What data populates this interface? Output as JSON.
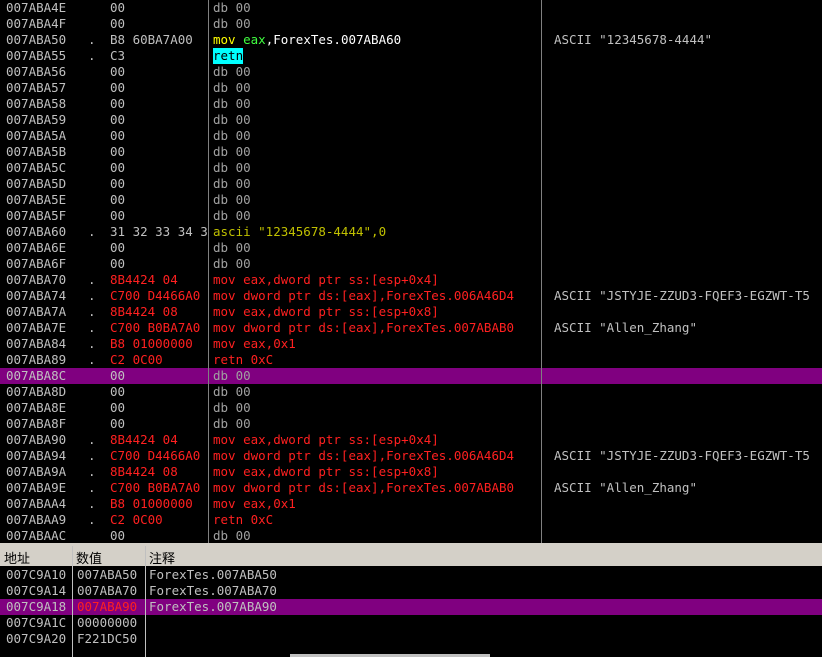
{
  "disassembly": {
    "rows": [
      {
        "address": "007ABA4E",
        "hex": "00",
        "code": "db 00"
      },
      {
        "address": "007ABA4F",
        "hex": "00",
        "code": "db 00"
      },
      {
        "address": "007ABA50",
        "mark": ".",
        "hex": "B8 60BA7A00",
        "code": "mov eax,ForexTes.007ABA60",
        "comment": "ASCII \"12345678-4444\""
      },
      {
        "address": "007ABA55",
        "mark": ".",
        "hex": "C3",
        "code": "retn"
      },
      {
        "address": "007ABA56",
        "hex": "00",
        "code": "db 00"
      },
      {
        "address": "007ABA57",
        "hex": "00",
        "code": "db 00"
      },
      {
        "address": "007ABA58",
        "hex": "00",
        "code": "db 00"
      },
      {
        "address": "007ABA59",
        "hex": "00",
        "code": "db 00"
      },
      {
        "address": "007ABA5A",
        "hex": "00",
        "code": "db 00"
      },
      {
        "address": "007ABA5B",
        "hex": "00",
        "code": "db 00"
      },
      {
        "address": "007ABA5C",
        "hex": "00",
        "code": "db 00"
      },
      {
        "address": "007ABA5D",
        "hex": "00",
        "code": "db 00"
      },
      {
        "address": "007ABA5E",
        "hex": "00",
        "code": "db 00"
      },
      {
        "address": "007ABA5F",
        "hex": "00",
        "code": "db 00"
      },
      {
        "address": "007ABA60",
        "mark": ".",
        "hex": "31 32 33 34 3",
        "code": "ascii \"12345678-4444\",0"
      },
      {
        "address": "007ABA6E",
        "hex": "00",
        "code": "db 00"
      },
      {
        "address": "007ABA6F",
        "hex": "00",
        "code": "db 00"
      },
      {
        "address": "007ABA70",
        "mark": ".",
        "hex": "8B4424 04",
        "code": "mov eax,dword ptr ss:[esp+0x4]"
      },
      {
        "address": "007ABA74",
        "mark": ".",
        "hex": "C700 D4466A0",
        "code": "mov dword ptr ds:[eax],ForexTes.006A46D4",
        "comment": "ASCII \"JSTYJE-ZZUD3-FQEF3-EGZWT-T5"
      },
      {
        "address": "007ABA7A",
        "mark": ".",
        "hex": "8B4424 08",
        "code": "mov eax,dword ptr ss:[esp+0x8]"
      },
      {
        "address": "007ABA7E",
        "mark": ".",
        "hex": "C700 B0BA7A0",
        "code": "mov dword ptr ds:[eax],ForexTes.007ABAB0",
        "comment": "ASCII \"Allen_Zhang\""
      },
      {
        "address": "007ABA84",
        "mark": ".",
        "hex": "B8 01000000",
        "code": "mov eax,0x1"
      },
      {
        "address": "007ABA89",
        "mark": ".",
        "hex": "C2 0C00",
        "code": "retn 0xC"
      },
      {
        "address": "007ABA8C",
        "hex": "00",
        "code": "db 00"
      },
      {
        "address": "007ABA8D",
        "hex": "00",
        "code": "db 00"
      },
      {
        "address": "007ABA8E",
        "hex": "00",
        "code": "db 00"
      },
      {
        "address": "007ABA8F",
        "hex": "00",
        "code": "db 00"
      },
      {
        "address": "007ABA90",
        "mark": ".",
        "hex": "8B4424 04",
        "code": "mov eax,dword ptr ss:[esp+0x4]"
      },
      {
        "address": "007ABA94",
        "mark": ".",
        "hex": "C700 D4466A0",
        "code": "mov dword ptr ds:[eax],ForexTes.006A46D4",
        "comment": "ASCII \"JSTYJE-ZZUD3-FQEF3-EGZWT-T5"
      },
      {
        "address": "007ABA9A",
        "mark": ".",
        "hex": "8B4424 08",
        "code": "mov eax,dword ptr ss:[esp+0x8]"
      },
      {
        "address": "007ABA9E",
        "mark": ".",
        "hex": "C700 B0BA7A0",
        "code": "mov dword ptr ds:[eax],ForexTes.007ABAB0",
        "comment": "ASCII \"Allen_Zhang\""
      },
      {
        "address": "007ABAA4",
        "mark": ".",
        "hex": "B8 01000000",
        "code": "mov eax,0x1"
      },
      {
        "address": "007ABAA9",
        "mark": ".",
        "hex": "C2 0C00",
        "code": "retn 0xC"
      },
      {
        "address": "007ABAAC",
        "hex": "00",
        "code": "db 00"
      }
    ]
  },
  "stack": {
    "headers": [
      "地址",
      "数值",
      "注释"
    ],
    "rows": [
      {
        "address": "007C9A10",
        "value": "007ABA50",
        "comment": "ForexTes.007ABA50"
      },
      {
        "address": "007C9A14",
        "value": "007ABA70",
        "comment": "ForexTes.007ABA70"
      },
      {
        "address": "007C9A18",
        "value": "007ABA90",
        "comment": "ForexTes.007ABA90"
      },
      {
        "address": "007C9A1C",
        "value": "00000000"
      },
      {
        "address": "007C9A20",
        "value": "F221DC50"
      }
    ]
  }
}
